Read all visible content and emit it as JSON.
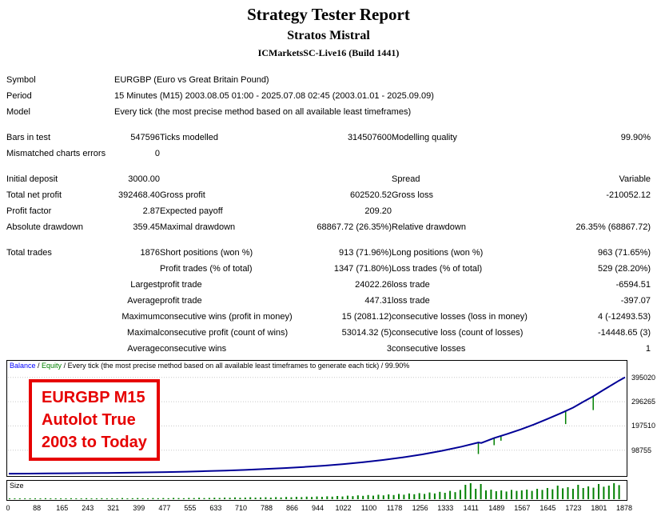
{
  "header": {
    "title": "Strategy Tester Report",
    "subtitle": "Stratos Mistral",
    "server": "ICMarketsSC-Live16 (Build 1441)"
  },
  "report": {
    "rows": [
      [
        [
          "Symbol",
          "l",
          1
        ],
        [
          "EURGBP (Euro vs Great Britain Pound)",
          "lv",
          5
        ]
      ],
      [
        [
          "Period",
          "l",
          1
        ],
        [
          "15 Minutes (M15) 2003.08.05 01:00 - 2025.07.08 02:45 (2003.01.01 - 2025.09.09)",
          "lv",
          5
        ]
      ],
      [
        [
          "Model",
          "l",
          1
        ],
        [
          "Every tick (the most precise method based on all available least timeframes)",
          "lv",
          5
        ]
      ],
      "spacer",
      [
        [
          "Bars in test",
          "l"
        ],
        [
          "547596",
          "v"
        ],
        [
          "Ticks modelled",
          "l2"
        ],
        [
          "314507600",
          "v"
        ],
        [
          "Modelling quality",
          "l2"
        ],
        [
          "99.90%",
          "v"
        ]
      ],
      [
        [
          "Mismatched charts errors",
          "l"
        ],
        [
          "0",
          "v"
        ],
        [
          "",
          "l2"
        ],
        [
          "",
          "v"
        ],
        [
          "",
          "l2"
        ],
        [
          "",
          "v"
        ]
      ],
      "spacer",
      [
        [
          "Initial deposit",
          "l"
        ],
        [
          "3000.00",
          "v"
        ],
        [
          "",
          "l2"
        ],
        [
          "",
          "v"
        ],
        [
          "Spread",
          "l2"
        ],
        [
          "Variable",
          "v"
        ]
      ],
      [
        [
          "Total net profit",
          "l"
        ],
        [
          "392468.40",
          "v"
        ],
        [
          "Gross profit",
          "l2"
        ],
        [
          "602520.52",
          "v"
        ],
        [
          "Gross loss",
          "l2"
        ],
        [
          "-210052.12",
          "v"
        ]
      ],
      [
        [
          "Profit factor",
          "l"
        ],
        [
          "2.87",
          "v"
        ],
        [
          "Expected payoff",
          "l2"
        ],
        [
          "209.20",
          "v"
        ],
        [
          "",
          "l2"
        ],
        [
          "",
          "v"
        ]
      ],
      [
        [
          "Absolute drawdown",
          "l"
        ],
        [
          "359.45",
          "v"
        ],
        [
          "Maximal drawdown",
          "l2"
        ],
        [
          "68867.72 (26.35%)",
          "v"
        ],
        [
          "Relative drawdown",
          "l2"
        ],
        [
          "26.35% (68867.72)",
          "v"
        ]
      ],
      "spacer",
      [
        [
          "Total trades",
          "l"
        ],
        [
          "1876",
          "v"
        ],
        [
          "Short positions (won %)",
          "l2"
        ],
        [
          "913 (71.96%)",
          "v"
        ],
        [
          "Long positions (won %)",
          "l2"
        ],
        [
          "963 (71.65%)",
          "v"
        ]
      ],
      [
        [
          "",
          "l"
        ],
        [
          "",
          "v"
        ],
        [
          "Profit trades (% of total)",
          "l2"
        ],
        [
          "1347 (71.80%)",
          "v"
        ],
        [
          "Loss trades (% of total)",
          "l2"
        ],
        [
          "529 (28.20%)",
          "v"
        ]
      ],
      [
        [
          "",
          "l"
        ],
        [
          "Largest",
          "v"
        ],
        [
          "profit trade",
          "l2"
        ],
        [
          "24022.26",
          "v"
        ],
        [
          "loss trade",
          "l2"
        ],
        [
          "-6594.51",
          "v"
        ]
      ],
      [
        [
          "",
          "l"
        ],
        [
          "Average",
          "v"
        ],
        [
          "profit trade",
          "l2"
        ],
        [
          "447.31",
          "v"
        ],
        [
          "loss trade",
          "l2"
        ],
        [
          "-397.07",
          "v"
        ]
      ],
      [
        [
          "",
          "l"
        ],
        [
          "Maximum",
          "v"
        ],
        [
          "consecutive wins (profit in money)",
          "l2"
        ],
        [
          "15 (2081.12)",
          "v"
        ],
        [
          "consecutive losses (loss in money)",
          "l2"
        ],
        [
          "4 (-12493.53)",
          "v"
        ]
      ],
      [
        [
          "",
          "l"
        ],
        [
          "Maximal",
          "v"
        ],
        [
          "consecutive profit (count of wins)",
          "l2"
        ],
        [
          "53014.32 (5)",
          "v"
        ],
        [
          "consecutive loss (count of losses)",
          "l2"
        ],
        [
          "-14448.65 (3)",
          "v"
        ]
      ],
      [
        [
          "",
          "l"
        ],
        [
          "Average",
          "v"
        ],
        [
          "consecutive wins",
          "l2"
        ],
        [
          "3",
          "v"
        ],
        [
          "consecutive losses",
          "l2"
        ],
        [
          "1",
          "v"
        ]
      ]
    ]
  },
  "chart_data": {
    "type": "line",
    "title": "Balance / Equity / Every tick (the most precise method based on all available least timeframes to generate each tick) / 99.90%",
    "caption_parts": [
      {
        "text": "Balance",
        "color": "#0000ff"
      },
      {
        "text": " / ",
        "color": "#000000"
      },
      {
        "text": "Equity",
        "color": "#008000"
      },
      {
        "text": " / Every tick (the most precise method based on all available least timeframes to generate each tick) / 99.90%",
        "color": "#000000"
      }
    ],
    "x_range": [
      0,
      1878
    ],
    "y_range": [
      0,
      430000
    ],
    "y_ticks": [
      98755,
      197510,
      296265,
      395020
    ],
    "x_ticks": [
      0,
      88,
      165,
      243,
      321,
      399,
      477,
      555,
      633,
      710,
      788,
      866,
      944,
      1022,
      1100,
      1178,
      1256,
      1333,
      1411,
      1489,
      1567,
      1645,
      1723,
      1801,
      1878
    ],
    "grid_color": "#c8c8c8",
    "series": [
      {
        "name": "Balance",
        "color": "#000096",
        "points": [
          [
            0,
            3000
          ],
          [
            60,
            3400
          ],
          [
            120,
            3900
          ],
          [
            180,
            4500
          ],
          [
            240,
            5200
          ],
          [
            300,
            6000
          ],
          [
            360,
            7000
          ],
          [
            420,
            8200
          ],
          [
            480,
            9600
          ],
          [
            540,
            11200
          ],
          [
            600,
            13200
          ],
          [
            660,
            15600
          ],
          [
            720,
            18400
          ],
          [
            780,
            21700
          ],
          [
            840,
            25600
          ],
          [
            900,
            30200
          ],
          [
            960,
            35600
          ],
          [
            1020,
            42000
          ],
          [
            1080,
            49600
          ],
          [
            1140,
            58500
          ],
          [
            1200,
            69000
          ],
          [
            1260,
            81500
          ],
          [
            1320,
            96000
          ],
          [
            1380,
            113000
          ],
          [
            1431,
            130000
          ],
          [
            1440,
            128000
          ],
          [
            1479,
            148000
          ],
          [
            1520,
            165000
          ],
          [
            1560,
            183000
          ],
          [
            1600,
            203000
          ],
          [
            1640,
            225000
          ],
          [
            1680,
            248000
          ],
          [
            1697,
            258000
          ],
          [
            1720,
            272000
          ],
          [
            1750,
            295000
          ],
          [
            1781,
            318000
          ],
          [
            1810,
            342000
          ],
          [
            1840,
            366000
          ],
          [
            1860,
            382000
          ],
          [
            1878,
            395468
          ]
        ]
      },
      {
        "name": "Equity",
        "color": "#008000",
        "spikes": [
          {
            "x": 1431,
            "top": 130000,
            "bottom": 83000
          },
          {
            "x": 1479,
            "top": 148000,
            "bottom": 119000
          },
          {
            "x": 1500,
            "top": 156000,
            "bottom": 137000
          },
          {
            "x": 1697,
            "top": 258000,
            "bottom": 205000
          },
          {
            "x": 1781,
            "top": 318000,
            "bottom": 262000
          }
        ]
      }
    ],
    "annotation": {
      "lines": [
        "EURGBP M15",
        "Autolot True",
        "2003 to Today"
      ],
      "color": "#e60000",
      "border_color": "#e60000"
    },
    "size_panel": {
      "label": "Size",
      "bar_color": "#008000",
      "bars": [
        0.05,
        0.04,
        0.05,
        0.04,
        0.05,
        0.05,
        0.04,
        0.06,
        0.05,
        0.04,
        0.05,
        0.05,
        0.06,
        0.04,
        0.05,
        0.06,
        0.05,
        0.04,
        0.06,
        0.05,
        0.06,
        0.05,
        0.07,
        0.05,
        0.06,
        0.07,
        0.06,
        0.05,
        0.07,
        0.06,
        0.07,
        0.06,
        0.08,
        0.07,
        0.06,
        0.08,
        0.07,
        0.09,
        0.07,
        0.08,
        0.09,
        0.08,
        0.1,
        0.09,
        0.11,
        0.09,
        0.1,
        0.12,
        0.1,
        0.11,
        0.12,
        0.1,
        0.13,
        0.11,
        0.14,
        0.12,
        0.15,
        0.13,
        0.16,
        0.14,
        0.17,
        0.15,
        0.18,
        0.16,
        0.2,
        0.17,
        0.22,
        0.19,
        0.24,
        0.21,
        0.26,
        0.22,
        0.28,
        0.24,
        0.3,
        0.26,
        0.33,
        0.28,
        0.36,
        0.31,
        0.38,
        0.33,
        0.42,
        0.36,
        0.46,
        0.4,
        0.52,
        0.44,
        0.58,
        0.9,
        1.0,
        0.65,
        0.95,
        0.55,
        0.6,
        0.5,
        0.55,
        0.48,
        0.58,
        0.52,
        0.55,
        0.6,
        0.52,
        0.65,
        0.58,
        0.7,
        0.62,
        0.85,
        0.68,
        0.75,
        0.65,
        0.9,
        0.7,
        0.8,
        0.72,
        0.95,
        0.78,
        0.85,
        1.0,
        0.88
      ]
    }
  }
}
